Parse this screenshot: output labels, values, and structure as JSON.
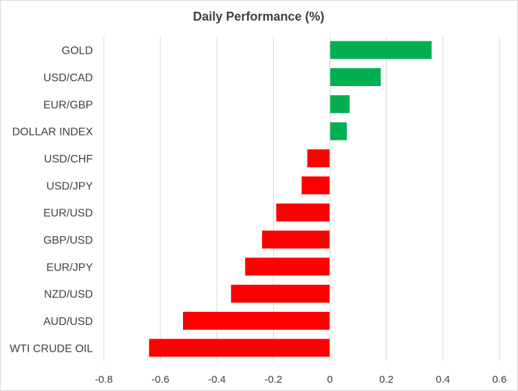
{
  "chart_data": {
    "type": "bar",
    "orientation": "horizontal",
    "title": "Daily Performance  (%)",
    "xlabel": "",
    "ylabel": "",
    "xlim": [
      -0.8,
      0.6
    ],
    "x_ticks": [
      -0.8,
      -0.6,
      -0.4,
      -0.2,
      0,
      0.2,
      0.4,
      0.6
    ],
    "x_tick_labels": [
      "-0.8",
      "-0.6",
      "-0.4",
      "-0.2",
      "0",
      "0.2",
      "0.4",
      "0.6"
    ],
    "grid": "vertical",
    "categories": [
      "GOLD",
      "USD/CAD",
      "EUR/GBP",
      "DOLLAR INDEX",
      "USD/CHF",
      "USD/JPY",
      "EUR/USD",
      "GBP/USD",
      "EUR/JPY",
      "NZD/USD",
      "AUD/USD",
      "WTI CRUDE OIL"
    ],
    "values": [
      0.36,
      0.18,
      0.07,
      0.06,
      -0.08,
      -0.1,
      -0.19,
      -0.24,
      -0.3,
      -0.35,
      -0.52,
      -0.64
    ],
    "colors": {
      "positive": "#00b050",
      "negative": "#ff0000",
      "grid": "#d9d9d9",
      "text": "#404040"
    }
  }
}
